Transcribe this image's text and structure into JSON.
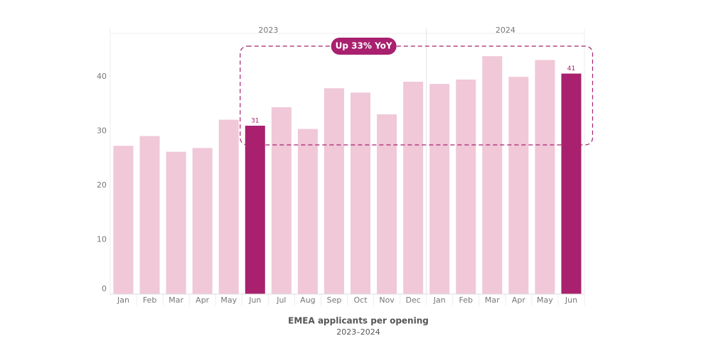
{
  "chart_data": {
    "type": "bar",
    "title": "EMEA applicants per opening",
    "subtitle": "2023–2024",
    "annotation": "Up 33% YoY",
    "groups": [
      {
        "label": "2023",
        "categories": [
          "Jan",
          "Feb",
          "Mar",
          "Apr",
          "May",
          "Jun",
          "Jul",
          "Aug",
          "Sep",
          "Oct",
          "Nov",
          "Dec"
        ],
        "values": [
          27.3,
          29.1,
          26.2,
          26.9,
          32.1,
          31,
          34.4,
          30.4,
          37.9,
          37.1,
          33.1,
          39.1
        ],
        "value_labels": [
          null,
          null,
          null,
          null,
          null,
          "31",
          null,
          null,
          null,
          null,
          null,
          null
        ],
        "colors": [
          "#f0c8d8",
          "#f0c8d8",
          "#f0c8d8",
          "#f0c8d8",
          "#f0c8d8",
          "#a8206e",
          "#f0c8d8",
          "#f0c8d8",
          "#f0c8d8",
          "#f0c8d8",
          "#f0c8d8",
          "#f0c8d8"
        ]
      },
      {
        "label": "2024",
        "categories": [
          "Jan",
          "Feb",
          "Mar",
          "Apr",
          "May",
          "Jun"
        ],
        "values": [
          38.7,
          39.5,
          43.8,
          40,
          43.1,
          40.6
        ],
        "value_labels": [
          null,
          null,
          null,
          null,
          null,
          "41"
        ],
        "colors": [
          "#f0c8d8",
          "#f0c8d8",
          "#f0c8d8",
          "#f0c8d8",
          "#f0c8d8",
          "#a8206e"
        ]
      }
    ],
    "annotation_color": "#a8206e",
    "ylim": [
      0,
      48
    ],
    "yticks": [
      0,
      10,
      20,
      30,
      40
    ],
    "grid": false
  }
}
